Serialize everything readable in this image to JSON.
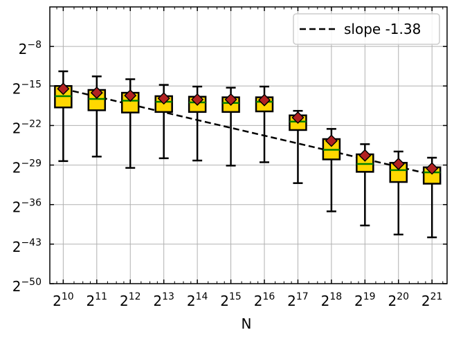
{
  "chart_data": {
    "type": "box",
    "xlabel": "N",
    "ylabel": "",
    "x_scale": "log2",
    "y_scale": "log2",
    "x_tick_labels": [
      {
        "base": "2",
        "exp": "10"
      },
      {
        "base": "2",
        "exp": "11"
      },
      {
        "base": "2",
        "exp": "12"
      },
      {
        "base": "2",
        "exp": "13"
      },
      {
        "base": "2",
        "exp": "14"
      },
      {
        "base": "2",
        "exp": "15"
      },
      {
        "base": "2",
        "exp": "16"
      },
      {
        "base": "2",
        "exp": "17"
      },
      {
        "base": "2",
        "exp": "18"
      },
      {
        "base": "2",
        "exp": "19"
      },
      {
        "base": "2",
        "exp": "20"
      },
      {
        "base": "2",
        "exp": "21"
      }
    ],
    "y_tick_labels": [
      {
        "base": "2",
        "exp": "−8"
      },
      {
        "base": "2",
        "exp": "−15"
      },
      {
        "base": "2",
        "exp": "−22"
      },
      {
        "base": "2",
        "exp": "−29"
      },
      {
        "base": "2",
        "exp": "−36"
      },
      {
        "base": "2",
        "exp": "−43"
      },
      {
        "base": "2",
        "exp": "−50"
      }
    ],
    "x_log2": [
      10,
      11,
      12,
      13,
      14,
      15,
      16,
      17,
      18,
      19,
      20,
      21
    ],
    "y_ticks_log2": [
      -8,
      -15,
      -22,
      -29,
      -36,
      -43,
      -50
    ],
    "ylim_log2": [
      -50,
      -1
    ],
    "xlim_log2": [
      9.6,
      21.45
    ],
    "grid": true,
    "boxes": [
      {
        "x": 10,
        "whislo": -28.3,
        "q1": -18.8,
        "med": -16.8,
        "q3": -15.0,
        "whishi": -12.4,
        "mean": -15.5
      },
      {
        "x": 11,
        "whislo": -27.5,
        "q1": -19.3,
        "med": -17.3,
        "q3": -15.7,
        "whishi": -13.3,
        "mean": -16.2
      },
      {
        "x": 12,
        "whislo": -29.5,
        "q1": -19.7,
        "med": -17.6,
        "q3": -16.2,
        "whishi": -13.8,
        "mean": -16.7
      },
      {
        "x": 13,
        "whislo": -27.8,
        "q1": -19.6,
        "med": -17.8,
        "q3": -16.8,
        "whishi": -14.8,
        "mean": -17.2
      },
      {
        "x": 14,
        "whislo": -28.2,
        "q1": -19.6,
        "med": -17.9,
        "q3": -16.9,
        "whishi": -15.1,
        "mean": -17.4
      },
      {
        "x": 15,
        "whislo": -29.1,
        "q1": -19.6,
        "med": -18.0,
        "q3": -17.0,
        "whishi": -15.3,
        "mean": -17.4
      },
      {
        "x": 16,
        "whislo": -28.5,
        "q1": -19.5,
        "med": -17.8,
        "q3": -17.0,
        "whishi": -15.1,
        "mean": -17.5
      },
      {
        "x": 17,
        "whislo": -32.2,
        "q1": -22.8,
        "med": -21.3,
        "q3": -20.2,
        "whishi": -19.4,
        "mean": -20.6
      },
      {
        "x": 18,
        "whislo": -37.2,
        "q1": -28.0,
        "med": -26.3,
        "q3": -24.4,
        "whishi": -22.6,
        "mean": -24.7
      },
      {
        "x": 19,
        "whislo": -39.7,
        "q1": -30.2,
        "med": -28.8,
        "q3": -27.1,
        "whishi": -25.3,
        "mean": -27.3
      },
      {
        "x": 20,
        "whislo": -41.3,
        "q1": -32.0,
        "med": -29.9,
        "q3": -28.6,
        "whishi": -26.6,
        "mean": -28.8
      },
      {
        "x": 21,
        "whislo": -41.8,
        "q1": -32.3,
        "med": -30.3,
        "q3": -29.4,
        "whishi": -27.7,
        "mean": -29.6
      }
    ],
    "fit_line": {
      "name": "slope -1.38",
      "x_log2": [
        10,
        21
      ],
      "y_log2": [
        -15.5,
        -30.7
      ]
    },
    "legend": {
      "entries": [
        "slope -1.38"
      ],
      "placement": "top-right"
    },
    "colors": {
      "box_fill": "#ffd700",
      "median": "#008000",
      "mean_marker": "#b22222",
      "edge": "#000000",
      "fit_line": "#000000",
      "grid": "#b0b0b0"
    }
  }
}
